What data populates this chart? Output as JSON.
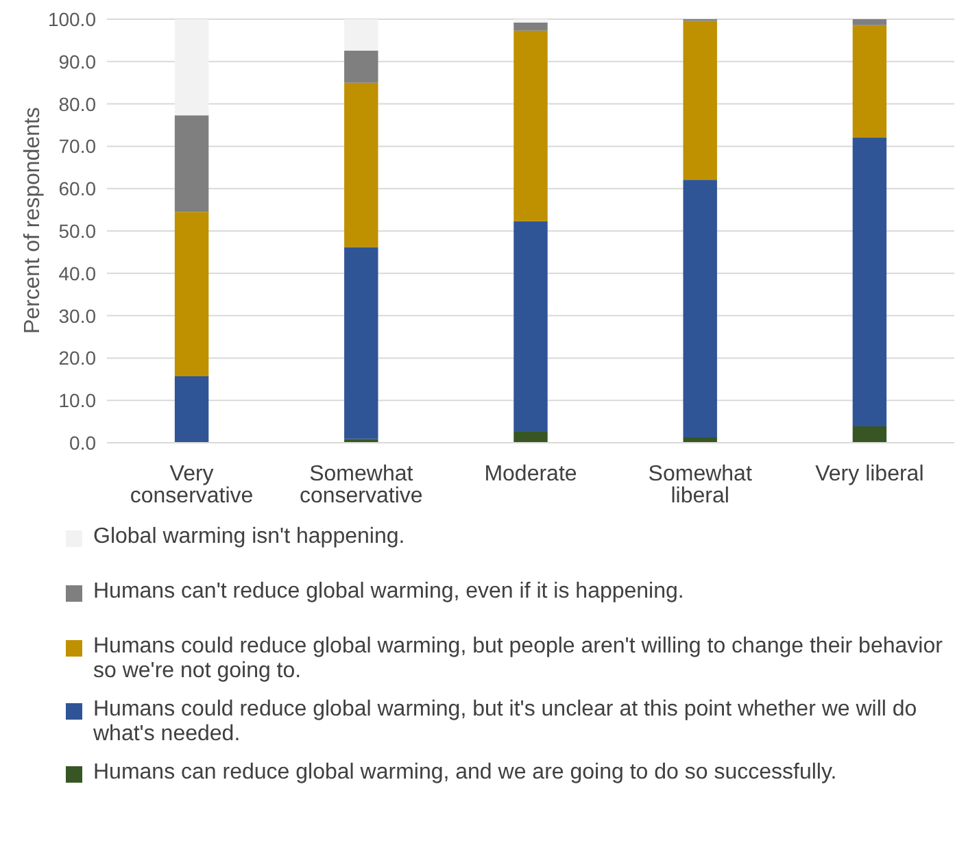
{
  "chart_data": {
    "type": "bar",
    "stacked": true,
    "ylabel": "Percent of respondents",
    "categories": [
      "Very conservative",
      "Somewhat conservative",
      "Moderate",
      "Somewhat liberal",
      "Very liberal"
    ],
    "ylim": [
      0,
      100
    ],
    "yticks": [
      {
        "value": 0,
        "label": "0.0"
      },
      {
        "value": 10,
        "label": "10.0"
      },
      {
        "value": 20,
        "label": "20.0"
      },
      {
        "value": 30,
        "label": "30.0"
      },
      {
        "value": 40,
        "label": "40.0"
      },
      {
        "value": 50,
        "label": "50.0"
      },
      {
        "value": 60,
        "label": "60.0"
      },
      {
        "value": 70,
        "label": "70.0"
      },
      {
        "value": 80,
        "label": "80.0"
      },
      {
        "value": 90,
        "label": "90.0"
      },
      {
        "value": 100,
        "label": "100.0"
      }
    ],
    "grid": "y",
    "legend": "bottom",
    "series": [
      {
        "name": "Humans can reduce global warming, and we are going to do so successfully.",
        "color": "#375623",
        "values": [
          0,
          0.9,
          2.6,
          1.3,
          3.9
        ]
      },
      {
        "name": "Humans could reduce global warming, but it's unclear at this point whether we will do what's needed.",
        "color": "#2f5597",
        "values": [
          15.7,
          45.3,
          49.7,
          60.8,
          68.1
        ]
      },
      {
        "name": "Humans could reduce global warming, but people aren't willing to change their behavior so we're not going to.",
        "color": "#bf9000",
        "values": [
          38.8,
          38.8,
          45.0,
          37.5,
          26.6
        ]
      },
      {
        "name": "Humans can't reduce global warming, even if it is happening.",
        "color": "#7f7f7f",
        "values": [
          22.8,
          7.6,
          1.9,
          0.4,
          1.4
        ]
      },
      {
        "name": "Global warming isn't happening.",
        "color": "#f2f2f2",
        "values": [
          22.7,
          7.4,
          0.8,
          0,
          0
        ]
      }
    ]
  }
}
